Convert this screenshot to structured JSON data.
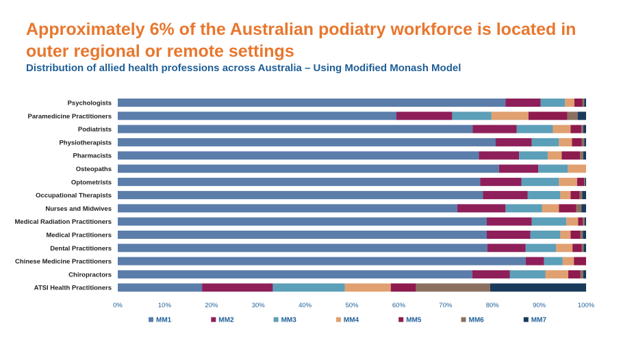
{
  "title": "Approximately 6% of the Australian podiatry workforce is located in outer regional or remote settings",
  "subtitle": "Distribution of allied health professions across Australia – Using Modified Monash Model",
  "chart_data": {
    "type": "bar",
    "orientation": "horizontal",
    "stacked": true,
    "normalized": true,
    "categories": [
      "Psychologists",
      "Paramedicine Practitioners",
      "Podiatrists",
      "Physiotherapists",
      "Pharmacists",
      "Osteopaths",
      "Optometrists",
      "Occupational Therapists",
      "Nurses and Midwives",
      "Medical Radiation Practitioners",
      "Medical Practitioners",
      "Dental Practitioners",
      "Chinese Medicine Practitioners",
      "Chiropractors",
      "ATSI Health Practitioners"
    ],
    "series": [
      {
        "name": "MM1",
        "color": "#5B7DAA",
        "values": [
          82.8,
          59.5,
          75.8,
          80.7,
          77.1,
          81.4,
          77.4,
          78.0,
          72.5,
          78.8,
          78.8,
          78.9,
          87.1,
          75.7,
          18.0
        ]
      },
      {
        "name": "MM2",
        "color": "#8E1F5A",
        "values": [
          7.5,
          11.9,
          9.4,
          7.7,
          8.6,
          8.4,
          8.8,
          9.5,
          10.3,
          9.6,
          9.3,
          8.2,
          3.9,
          8.0,
          15.1
        ]
      },
      {
        "name": "MM3",
        "color": "#5C9FB8",
        "values": [
          5.2,
          8.4,
          7.7,
          5.8,
          6.1,
          6.3,
          8.0,
          7.0,
          7.8,
          7.4,
          6.4,
          6.5,
          4.0,
          7.6,
          15.4
        ]
      },
      {
        "name": "MM4",
        "color": "#E0A070",
        "values": [
          2.0,
          7.9,
          3.8,
          2.8,
          3.0,
          3.9,
          3.9,
          2.2,
          3.6,
          2.5,
          2.2,
          3.5,
          2.4,
          4.9,
          9.8
        ]
      },
      {
        "name": "MM5",
        "color": "#8E1A4E",
        "values": [
          1.7,
          8.3,
          2.3,
          2.1,
          3.9,
          0.0,
          1.5,
          1.9,
          3.7,
          1.0,
          2.1,
          2.0,
          2.6,
          2.6,
          5.4
        ]
      },
      {
        "name": "MM6",
        "color": "#8B7060",
        "values": [
          0.4,
          2.2,
          0.4,
          0.5,
          0.7,
          0.0,
          0.2,
          0.6,
          1.1,
          0.4,
          0.5,
          0.4,
          0.0,
          0.6,
          15.8
        ]
      },
      {
        "name": "MM7",
        "color": "#1A3A5C",
        "values": [
          0.4,
          1.8,
          0.6,
          0.4,
          0.6,
          0.0,
          0.2,
          0.8,
          1.0,
          0.3,
          0.7,
          0.5,
          0.0,
          0.6,
          20.5
        ]
      }
    ],
    "x_ticks": [
      "0%",
      "10%",
      "20%",
      "30%",
      "40%",
      "50%",
      "60%",
      "70%",
      "80%",
      "90%",
      "100%"
    ],
    "xlim": [
      0,
      100
    ],
    "grid": false,
    "legend_position": "bottom"
  }
}
